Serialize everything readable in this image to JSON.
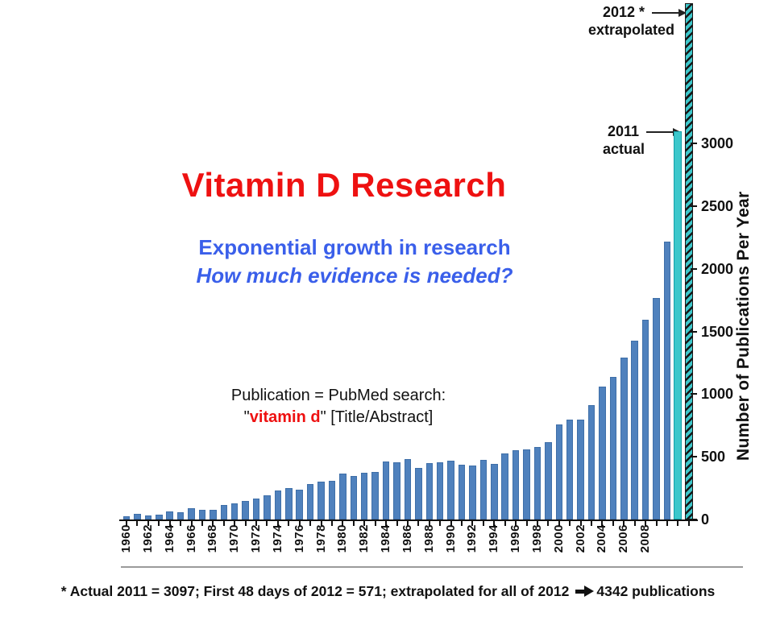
{
  "colors": {
    "title_red": "#ee1111",
    "subtitle_blue": "#3a5fea",
    "bar_blue": "#4f81bd",
    "bar_teal": "#3cc7cb",
    "divider_gray": "#9b9b9b"
  },
  "title": {
    "text": "Vitamin D Research"
  },
  "subtitle": {
    "line1": "Exponential growth in research",
    "line2": "How much evidence is needed?"
  },
  "search_note": {
    "line1": "Publication = PubMed search:",
    "prefix": "\"",
    "term": "vitamin d",
    "suffix": "\" [Title/Abstract]"
  },
  "annotations": {
    "extrapolated": {
      "line1": "2012 *",
      "line2": "extrapolated"
    },
    "actual": {
      "line1": "2011",
      "line2": "actual"
    }
  },
  "icons": {
    "annotation_arrow": "right-arrow",
    "footnote_arrow": "heavy-right-arrow"
  },
  "footnote": {
    "text_before_arrow": "* Actual 2011 = 3097; First 48 days of 2012 = 571; extrapolated for all of 2012",
    "text_after_arrow": "4342 publications"
  },
  "chart_data": {
    "type": "bar",
    "title": "Vitamin D Research",
    "xlabel": "",
    "ylabel": "Number of Publications Per Year",
    "y_axis_side": "right",
    "grid": false,
    "legend": false,
    "ylim": [
      0,
      3100
    ],
    "y_ticks": [
      0,
      500,
      1000,
      1500,
      2000,
      2500,
      3000
    ],
    "x_tick_labels": [
      1960,
      1962,
      1964,
      1966,
      1968,
      1970,
      1972,
      1974,
      1976,
      1978,
      1980,
      1982,
      1984,
      1986,
      1988,
      1990,
      1992,
      1994,
      1996,
      1998,
      2000,
      2002,
      2004,
      2006,
      2008
    ],
    "x": [
      1960,
      1961,
      1962,
      1963,
      1964,
      1965,
      1966,
      1967,
      1968,
      1969,
      1970,
      1971,
      1972,
      1973,
      1974,
      1975,
      1976,
      1977,
      1978,
      1979,
      1980,
      1981,
      1982,
      1983,
      1984,
      1985,
      1986,
      1987,
      1988,
      1989,
      1990,
      1991,
      1992,
      1993,
      1994,
      1995,
      1996,
      1997,
      1998,
      1999,
      2000,
      2001,
      2002,
      2003,
      2004,
      2005,
      2006,
      2007,
      2008,
      2009,
      2010,
      2011,
      2012
    ],
    "values": [
      25,
      45,
      35,
      40,
      65,
      55,
      90,
      75,
      80,
      115,
      130,
      150,
      165,
      190,
      230,
      250,
      240,
      280,
      300,
      310,
      365,
      350,
      370,
      380,
      465,
      455,
      480,
      410,
      450,
      455,
      470,
      435,
      430,
      475,
      445,
      530,
      550,
      560,
      580,
      615,
      760,
      795,
      795,
      910,
      1060,
      1135,
      1290,
      1430,
      1595,
      1770,
      2220,
      3097,
      4342
    ],
    "highlighted_bars": {
      "2011": "actual (solid teal)",
      "2012": "extrapolated (hatched teal, clipped at top of image)"
    },
    "source_values": {
      "actual_2011": 3097,
      "first_48_days_2012": 571,
      "extrapolated_2012": 4342
    }
  }
}
